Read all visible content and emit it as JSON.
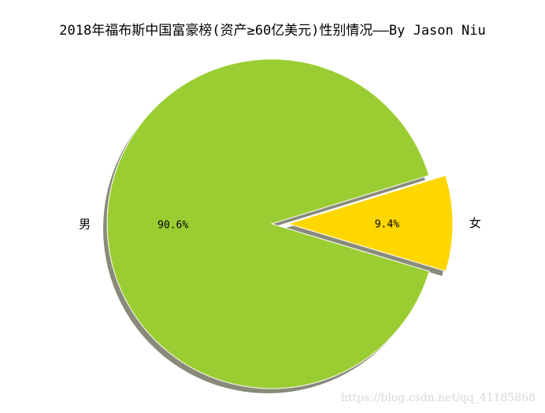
{
  "chart_data": {
    "type": "pie",
    "title": "2018年福布斯中国富豪榜(资产≥60亿美元)性别情况——By Jason Niu",
    "slices": [
      {
        "label": "男",
        "value": 90.6,
        "pct_text": "90.6%",
        "color": "#9acd32",
        "explode": false
      },
      {
        "label": "女",
        "value": 9.4,
        "pct_text": "9.4%",
        "color": "#ffd700",
        "explode": true
      }
    ],
    "shadow": true,
    "shadow_color": "#8a8a7a",
    "edge_color": "#ffffff",
    "start_direction": "female slice centered at upper-right, counterclockwise"
  },
  "watermark": "https://blog.csdn.net/qq_41185868"
}
